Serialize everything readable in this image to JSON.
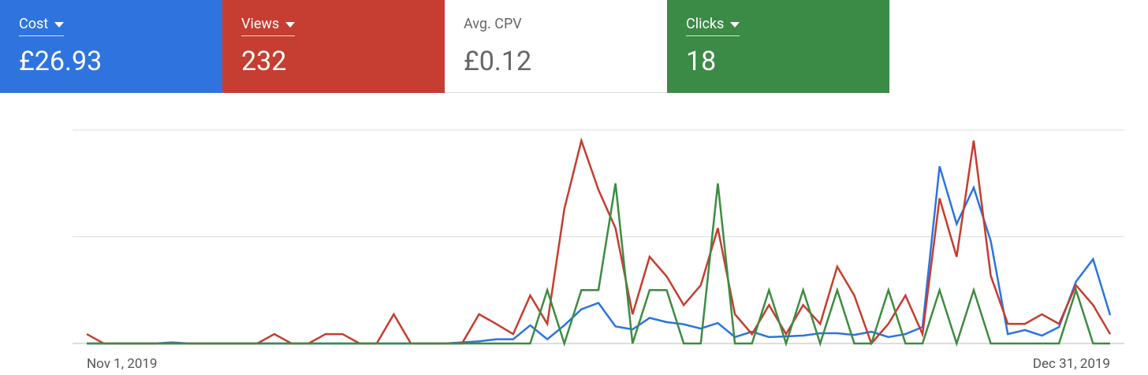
{
  "cards": [
    {
      "label": "Cost",
      "value": "£26.93",
      "color": "#2f74de"
    },
    {
      "label": "Views",
      "value": "232",
      "color": "#c63e31"
    },
    {
      "label": "Avg. CPV",
      "value": "£0.12",
      "color": "#ffffff"
    },
    {
      "label": "Clicks",
      "value": "18",
      "color": "#3b8a45"
    }
  ],
  "chart_data": {
    "type": "line",
    "categories": [
      "Nov 1, 2019",
      null,
      null,
      null,
      null,
      null,
      null,
      null,
      null,
      null,
      null,
      null,
      null,
      null,
      null,
      null,
      null,
      null,
      null,
      null,
      null,
      null,
      null,
      null,
      null,
      null,
      null,
      null,
      null,
      null,
      null,
      null,
      null,
      null,
      null,
      null,
      null,
      null,
      null,
      null,
      null,
      null,
      null,
      null,
      null,
      null,
      null,
      null,
      null,
      null,
      null,
      null,
      null,
      null,
      null,
      null,
      null,
      null,
      null,
      null,
      "Dec 31, 2019"
    ],
    "series": [
      {
        "name": "Cost",
        "color": "#2b74e0",
        "values": [
          0,
          0,
          0,
          0,
          0,
          0.5,
          0,
          0,
          0,
          0,
          0,
          0,
          0,
          0,
          0,
          0,
          0,
          0,
          0,
          0,
          0,
          0,
          0.5,
          1,
          2,
          2,
          8.5,
          2,
          8.5,
          16,
          19,
          8,
          6.6,
          12,
          10,
          9,
          7,
          9.6,
          3,
          5.5,
          3,
          3.3,
          3.7,
          4.8,
          4.8,
          4,
          5.5,
          3,
          4.4,
          7.7,
          83,
          56,
          73,
          48,
          4.4,
          6.3,
          3.7,
          7.7,
          29,
          39.5,
          13.3
        ]
      },
      {
        "name": "Views",
        "color": "#c53d2f",
        "values": [
          4.4,
          0,
          0,
          0,
          0,
          0,
          0,
          0,
          0,
          0,
          0,
          4.4,
          0,
          0,
          4.4,
          4.4,
          0,
          0,
          13.7,
          0,
          0,
          0,
          0,
          13.7,
          9.2,
          4.4,
          22.5,
          9.2,
          63,
          95,
          72,
          54,
          13.7,
          40.6,
          31.4,
          18,
          27.3,
          54,
          13.7,
          4.4,
          18,
          4.4,
          18,
          9.2,
          36,
          22.5,
          0,
          9.2,
          22.5,
          4.4,
          68,
          40.6,
          95,
          31.7,
          9.2,
          9.2,
          13.7,
          9.2,
          27.3,
          18,
          4.4
        ]
      },
      {
        "name": "Clicks",
        "color": "#3d8c40",
        "values": [
          0,
          0,
          0,
          0,
          0,
          0,
          0,
          0,
          0,
          0,
          0,
          0,
          0,
          0,
          0,
          0,
          0,
          0,
          0,
          0,
          0,
          0,
          0,
          0,
          0,
          0,
          0,
          25,
          0,
          25,
          25,
          75,
          0,
          25,
          25,
          0,
          0,
          75,
          0,
          0,
          25,
          0,
          25,
          0,
          25,
          0,
          0,
          25,
          0,
          0,
          25,
          0,
          25,
          0,
          0,
          0,
          0,
          0,
          25,
          0,
          0
        ]
      }
    ],
    "ylim": [
      0,
      100
    ],
    "yticks": [
      0,
      50,
      100
    ],
    "grid": true
  }
}
